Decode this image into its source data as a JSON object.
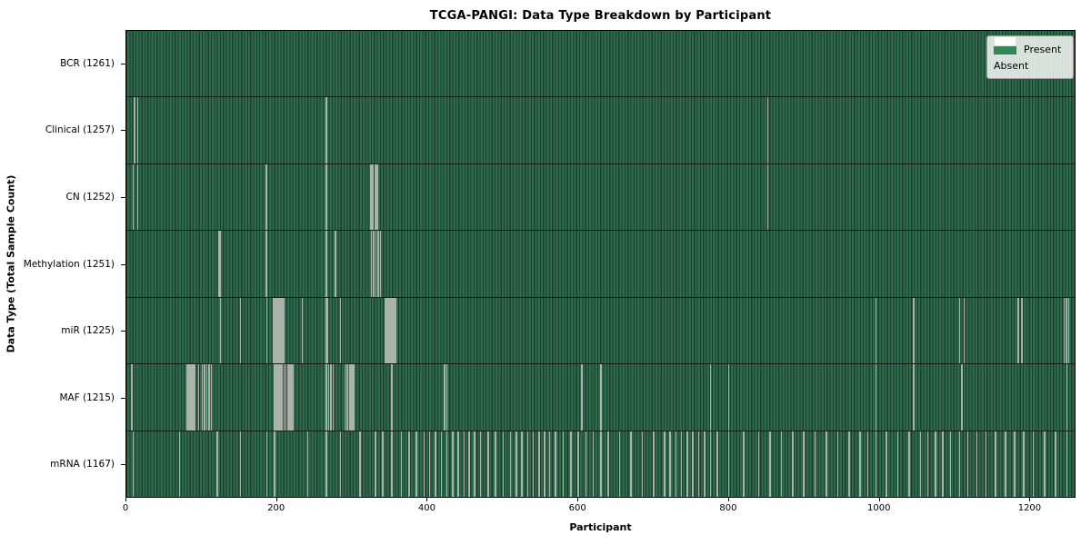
{
  "header": {
    "title": "TCGA-PANGI: Data Type Breakdown by Participant"
  },
  "legend": {
    "present_label": "Present",
    "absent_label": "Absent"
  },
  "chart_data": {
    "type": "heatmap",
    "title": "TCGA-PANGI: Data Type Breakdown by Participant",
    "xlabel": "Participant",
    "ylabel": "Data Type (Total Sample Count)",
    "x_ticks": [
      0,
      200,
      400,
      600,
      800,
      1000,
      1200
    ],
    "x_range": [
      0,
      1261
    ],
    "total_participants": 1261,
    "grid": false,
    "legend_position": "upper right",
    "legend_entries": [
      {
        "label": "Present",
        "color": "#2e8b57"
      },
      {
        "label": "Absent",
        "color": "#ffffff"
      }
    ],
    "colors": {
      "present_fill": "#2e6b4c",
      "bar_edge": "#1c3e2d",
      "legend_present": "#2e8b57",
      "absent_line": "#a9b3ab",
      "row_separator": "#101d15"
    },
    "rows": [
      {
        "data_type": "BCR",
        "label": "BCR (1261)",
        "present_count": 1261,
        "absent_count": 0,
        "absent_participants": []
      },
      {
        "data_type": "Clinical",
        "label": "Clinical (1257)",
        "present_count": 1257,
        "absent_count": 4,
        "absent_participants": [
          10,
          14,
          265,
          852
        ]
      },
      {
        "data_type": "CN",
        "label": "CN (1252)",
        "present_count": 1252,
        "absent_count": 9,
        "absent_participants": [
          8,
          14,
          185,
          265,
          324,
          327,
          330,
          333,
          852
        ]
      },
      {
        "data_type": "Methylation",
        "label": "Methylation (1251)",
        "present_count": 1251,
        "absent_count": 10,
        "absent_participants": [
          122,
          124,
          185,
          265,
          277,
          325,
          328,
          331,
          334,
          337
        ]
      },
      {
        "data_type": "miR",
        "label": "miR (1225)",
        "present_count": 1225,
        "absent_count": 36,
        "absent_participants": [
          124,
          151,
          186,
          195,
          196,
          198,
          199,
          201,
          202,
          204,
          205,
          207,
          209,
          233,
          265,
          267,
          284,
          343,
          344,
          346,
          347,
          349,
          350,
          352,
          353,
          355,
          357,
          996,
          1046,
          1107,
          1113,
          1185,
          1190,
          1246,
          1249,
          1252
        ]
      },
      {
        "data_type": "MAF",
        "label": "MAF (1215)",
        "present_count": 1215,
        "absent_count": 46,
        "absent_participants": [
          6,
          80,
          82,
          84,
          86,
          88,
          90,
          95,
          100,
          103,
          106,
          109,
          112,
          196,
          198,
          200,
          202,
          204,
          206,
          209,
          211,
          214,
          217,
          219,
          221,
          265,
          268,
          271,
          274,
          290,
          293,
          296,
          298,
          300,
          302,
          352,
          422,
          425,
          605,
          630,
          776,
          800,
          996,
          1046,
          1110,
          1250
        ]
      },
      {
        "data_type": "mRNA",
        "label": "mRNA (1167)",
        "present_count": 1167,
        "absent_count": 94,
        "absent_participants": [
          8,
          70,
          120,
          151,
          186,
          196,
          240,
          265,
          284,
          310,
          330,
          340,
          352,
          365,
          375,
          385,
          395,
          402,
          410,
          418,
          425,
          433,
          440,
          448,
          455,
          462,
          470,
          480,
          490,
          500,
          510,
          518,
          525,
          533,
          540,
          548,
          555,
          562,
          570,
          580,
          590,
          600,
          610,
          620,
          630,
          640,
          655,
          670,
          685,
          700,
          715,
          722,
          730,
          737,
          745,
          752,
          760,
          768,
          776,
          785,
          800,
          820,
          840,
          855,
          870,
          885,
          900,
          915,
          930,
          945,
          960,
          975,
          985,
          996,
          1010,
          1025,
          1040,
          1055,
          1065,
          1075,
          1085,
          1095,
          1107,
          1118,
          1130,
          1142,
          1155,
          1168,
          1180,
          1192,
          1205,
          1220,
          1235,
          1250
        ]
      }
    ]
  }
}
